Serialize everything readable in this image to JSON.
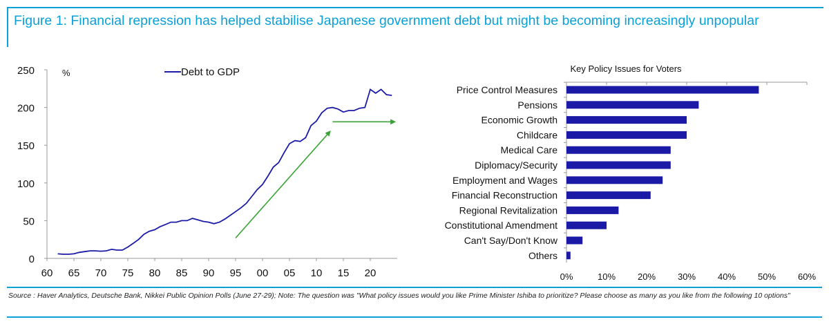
{
  "figure_title": "Figure 1: Financial repression has helped stabilise Japanese government debt but might be becoming increasingly unpopular",
  "source_note": "Source : Haver Analytics, Deutsche Bank, Nikkei Public Opinion Polls (June 27-29); Note: The question was \"What policy issues would you like Prime Minister Ishiba to prioritize? Please choose as many as you like from the following 10 options\"",
  "colors": {
    "accent": "#0aa0d8",
    "series": "#1a1aa6",
    "arrow": "#3aa335"
  },
  "chart_data": [
    {
      "type": "line",
      "title": "",
      "ylabel": "%",
      "ylim": [
        0,
        250
      ],
      "yticks": [
        0,
        50,
        100,
        150,
        200,
        250
      ],
      "xlim": [
        1960,
        2025
      ],
      "xticks": [
        1960,
        1965,
        1970,
        1975,
        1980,
        1985,
        1990,
        1995,
        2000,
        2005,
        2010,
        2015,
        2020
      ],
      "xtick_labels": [
        "60",
        "65",
        "70",
        "75",
        "80",
        "85",
        "90",
        "95",
        "00",
        "05",
        "10",
        "15",
        "20"
      ],
      "series": [
        {
          "name": "Debt to GDP",
          "x": [
            1962,
            1963,
            1964,
            1965,
            1966,
            1967,
            1968,
            1969,
            1970,
            1971,
            1972,
            1973,
            1974,
            1975,
            1976,
            1977,
            1978,
            1979,
            1980,
            1981,
            1982,
            1983,
            1984,
            1985,
            1986,
            1987,
            1988,
            1989,
            1990,
            1991,
            1992,
            1993,
            1994,
            1995,
            1996,
            1997,
            1998,
            1999,
            2000,
            2001,
            2002,
            2003,
            2004,
            2005,
            2006,
            2007,
            2008,
            2009,
            2010,
            2011,
            2012,
            2013,
            2014,
            2015,
            2016,
            2017,
            2018,
            2019,
            2020,
            2021,
            2022,
            2023,
            2024
          ],
          "values": [
            6,
            5.5,
            5.5,
            6,
            8,
            9,
            10,
            10,
            9.5,
            10,
            12,
            11,
            11,
            15,
            20,
            25,
            32,
            36,
            38,
            42,
            45,
            48,
            48,
            50,
            50,
            53,
            51,
            49,
            48,
            46,
            48,
            52,
            57,
            62,
            67,
            73,
            82,
            91,
            98,
            109,
            121,
            127,
            140,
            152,
            156,
            155,
            160,
            176,
            182,
            193,
            199,
            200,
            198,
            194,
            196,
            196,
            199,
            200,
            224,
            219,
            224,
            217,
            216
          ]
        }
      ],
      "legend": [
        "Debt to GDP"
      ],
      "annotations": [
        {
          "type": "arrow",
          "from": [
            1995,
            27
          ],
          "to": [
            2012.5,
            168
          ]
        },
        {
          "type": "arrow",
          "from": [
            2013,
            181
          ],
          "to": [
            2024.5,
            181
          ]
        }
      ]
    },
    {
      "type": "bar",
      "orientation": "horizontal",
      "title": "Key Policy Issues for Voters",
      "categories": [
        "Price Control Measures",
        "Pensions",
        "Economic Growth",
        "Childcare",
        "Medical Care",
        "Diplomacy/Security",
        "Employment and Wages",
        "Financial Reconstruction",
        "Regional Revitalization",
        "Constitutional Amendment",
        "Can't Say/Don't Know",
        "Others"
      ],
      "values": [
        48,
        33,
        30,
        30,
        26,
        26,
        24,
        21,
        13,
        10,
        4,
        1
      ],
      "xlim": [
        0,
        60
      ],
      "xticks": [
        0,
        10,
        20,
        30,
        40,
        50,
        60
      ],
      "xtick_labels": [
        "0%",
        "10%",
        "20%",
        "30%",
        "40%",
        "50%",
        "60%"
      ]
    }
  ]
}
